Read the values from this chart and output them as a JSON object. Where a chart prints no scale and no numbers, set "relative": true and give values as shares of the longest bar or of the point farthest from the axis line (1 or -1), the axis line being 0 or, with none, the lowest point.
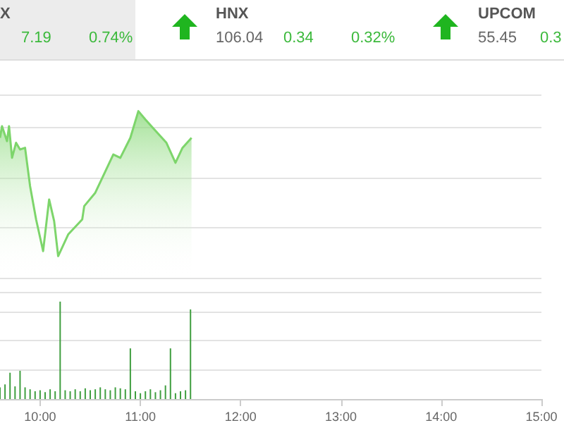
{
  "chart_data": [
    {
      "type": "other",
      "annotations": [
        "X",
        "7.19",
        "0.74%",
        "HNX",
        "106.04",
        "0.34",
        "0.32%",
        "UPCOM",
        "55.45",
        "0.3"
      ]
    },
    {
      "type": "area",
      "relative": true,
      "color": "#7dd56b",
      "grid": "y",
      "tick_labels": false,
      "xlim": [
        9.6,
        15
      ],
      "x": [
        9.6,
        9.62,
        9.67,
        9.69,
        9.72,
        9.76,
        9.8,
        9.85,
        9.9,
        9.96,
        10.03,
        10.09,
        10.14,
        10.18,
        10.28,
        10.42,
        10.44,
        10.55,
        10.73,
        10.8,
        10.9,
        10.98,
        11.05,
        11.14,
        11.26,
        11.35,
        11.42,
        11.51
      ],
      "values": [
        0.84,
        0.91,
        0.82,
        0.91,
        0.72,
        0.81,
        0.77,
        0.78,
        0.55,
        0.35,
        0.16,
        0.47,
        0.34,
        0.13,
        0.26,
        0.35,
        0.43,
        0.51,
        0.74,
        0.72,
        0.84,
        1.0,
        0.95,
        0.89,
        0.81,
        0.69,
        0.78,
        0.84
      ]
    },
    {
      "type": "bar",
      "relative": true,
      "color": "#3f9e3f",
      "grid": "y",
      "tick_labels": "x",
      "xlim": [
        9.6,
        15
      ],
      "xticks": [
        {
          "value": 10,
          "label": "10:00"
        },
        {
          "value": 11,
          "label": "11:00"
        },
        {
          "value": 12,
          "label": "12:00"
        },
        {
          "value": 13,
          "label": "13:00"
        },
        {
          "value": 14,
          "label": "14:00"
        },
        {
          "value": 15,
          "label": "15:00"
        }
      ],
      "x": [
        9.6,
        9.65,
        9.7,
        9.75,
        9.8,
        9.85,
        9.9,
        9.95,
        10.0,
        10.05,
        10.1,
        10.15,
        10.2,
        10.25,
        10.3,
        10.35,
        10.4,
        10.45,
        10.5,
        10.55,
        10.6,
        10.65,
        10.7,
        10.75,
        10.8,
        10.85,
        10.9,
        10.95,
        11.0,
        11.05,
        11.1,
        11.15,
        11.2,
        11.25,
        11.3,
        11.35,
        11.4,
        11.45,
        11.5
      ],
      "values": [
        0.12,
        0.15,
        0.27,
        0.13,
        0.29,
        0.12,
        0.1,
        0.08,
        0.09,
        0.07,
        0.1,
        0.08,
        1.0,
        0.09,
        0.08,
        0.1,
        0.08,
        0.11,
        0.09,
        0.1,
        0.12,
        0.1,
        0.09,
        0.12,
        0.11,
        0.1,
        0.52,
        0.08,
        0.06,
        0.08,
        0.1,
        0.07,
        0.09,
        0.14,
        0.52,
        0.06,
        0.08,
        0.09,
        0.92
      ]
    }
  ]
}
